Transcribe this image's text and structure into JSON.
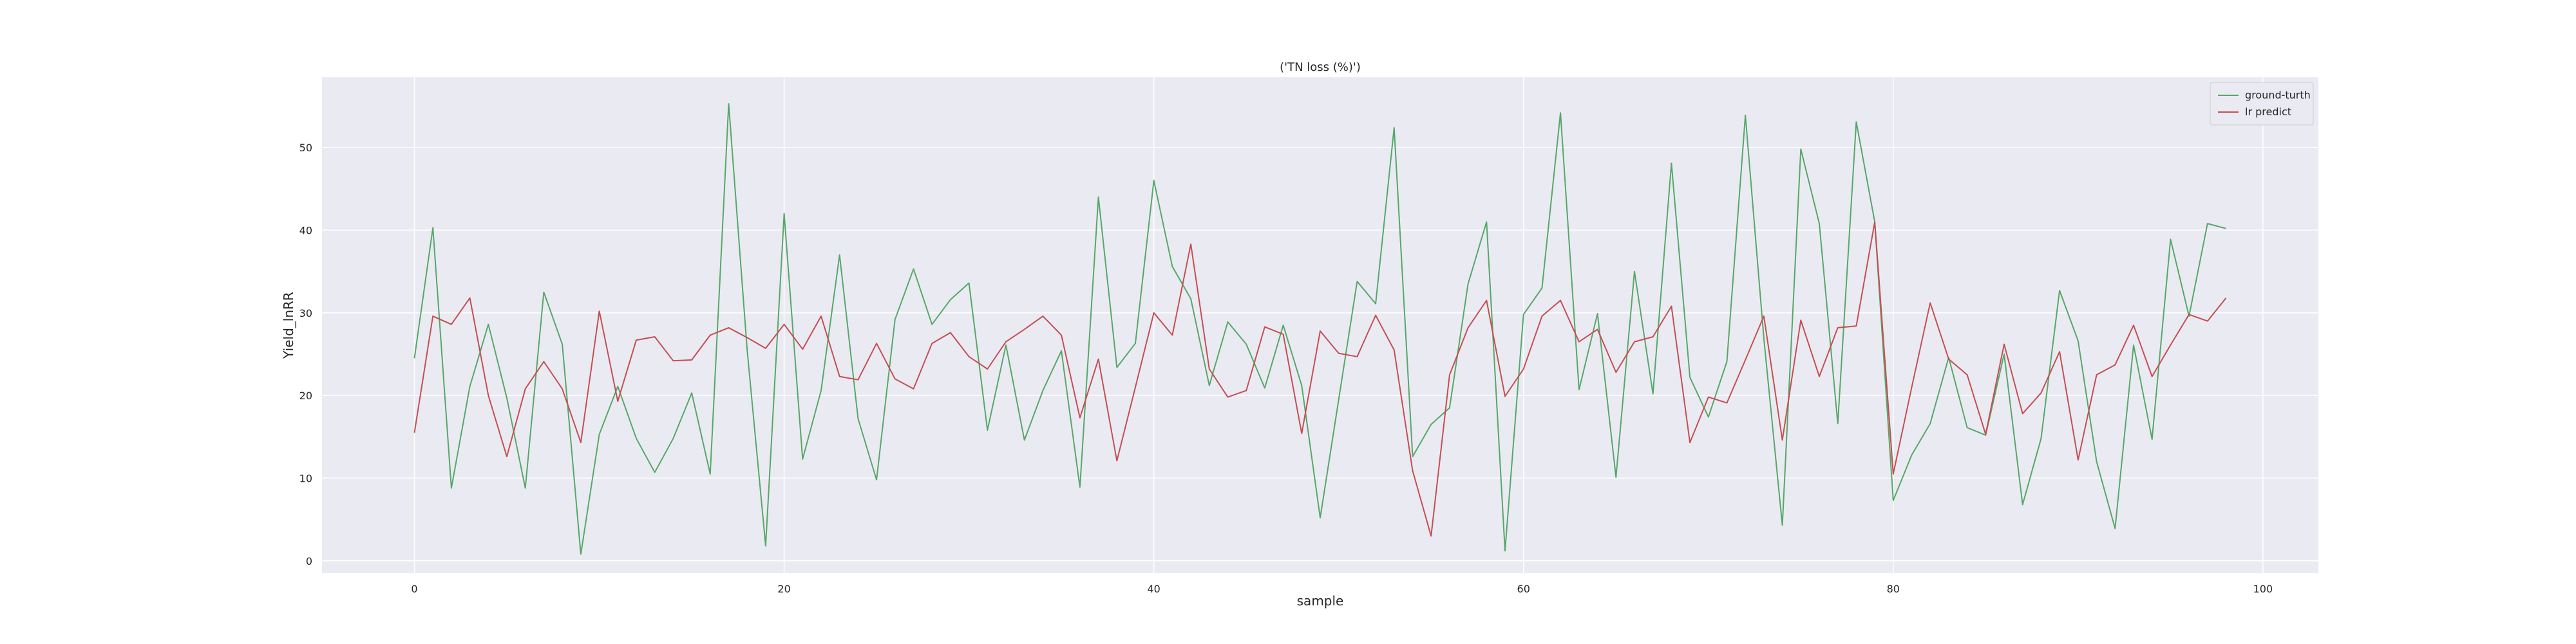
{
  "chart_data": {
    "type": "line",
    "title": "('TN loss (%)')",
    "xlabel": "sample",
    "ylabel": "Yield_lnRR",
    "xlim": [
      -5,
      103
    ],
    "ylim": [
      -1.5,
      58.5
    ],
    "xticks": [
      0,
      20,
      40,
      60,
      80,
      100
    ],
    "yticks": [
      0,
      10,
      20,
      30,
      40,
      50
    ],
    "grid": true,
    "legend": "top-right",
    "background": "#eaeaf2",
    "x": [
      0,
      1,
      2,
      3,
      4,
      5,
      6,
      7,
      8,
      9,
      10,
      11,
      12,
      13,
      14,
      15,
      16,
      17,
      18,
      19,
      20,
      21,
      22,
      23,
      24,
      25,
      26,
      27,
      28,
      29,
      30,
      31,
      32,
      33,
      34,
      35,
      36,
      37,
      38,
      39,
      40,
      41,
      42,
      43,
      44,
      45,
      46,
      47,
      48,
      49,
      50,
      51,
      52,
      53,
      54,
      55,
      56,
      57,
      58,
      59,
      60,
      61,
      62,
      63,
      64,
      65,
      66,
      67,
      68,
      69,
      70,
      71,
      72,
      73,
      74,
      75,
      76,
      77,
      78,
      79,
      80,
      81,
      82,
      83,
      84,
      85,
      86,
      87,
      88,
      89,
      90,
      91,
      92,
      93,
      94,
      95,
      96,
      97,
      98
    ],
    "series": [
      {
        "name": "ground-turth",
        "color": "#55a868",
        "values": [
          24.5,
          40.3,
          8.8,
          21.1,
          28.6,
          19.7,
          8.8,
          32.5,
          26.2,
          0.8,
          15.3,
          21.1,
          14.8,
          10.7,
          14.8,
          20.3,
          10.5,
          55.3,
          25.5,
          1.8,
          42.0,
          12.3,
          20.6,
          37.0,
          17.2,
          9.8,
          29.2,
          35.3,
          28.6,
          31.6,
          33.6,
          15.8,
          26.1,
          14.6,
          20.6,
          25.4,
          8.9,
          44.0,
          23.4,
          26.3,
          46.0,
          35.6,
          31.7,
          21.2,
          28.9,
          26.2,
          20.9,
          28.5,
          21.2,
          5.2,
          19.5,
          33.8,
          31.1,
          52.4,
          12.6,
          16.5,
          18.5,
          33.5,
          41.0,
          1.2,
          29.8,
          33.0,
          54.2,
          20.7,
          29.9,
          10.1,
          35.0,
          20.2,
          48.1,
          22.2,
          17.4,
          24.1,
          53.9,
          26.9,
          4.3,
          49.8,
          40.8,
          16.6,
          53.1,
          41.0,
          7.3,
          12.8,
          16.6,
          24.6,
          16.1,
          15.2,
          25.0,
          6.8,
          14.8,
          32.7,
          26.6,
          12.0,
          3.9,
          26.1,
          14.7,
          38.9,
          29.6,
          40.8,
          40.2
        ]
      },
      {
        "name": "lr predict",
        "color": "#c44e52",
        "values": [
          15.5,
          29.6,
          28.6,
          31.8,
          20.0,
          12.6,
          20.8,
          24.1,
          20.8,
          14.3,
          30.2,
          19.3,
          26.7,
          27.1,
          24.2,
          24.3,
          27.3,
          28.2,
          27.0,
          25.7,
          28.6,
          25.6,
          29.6,
          22.3,
          21.9,
          26.3,
          22.0,
          20.8,
          26.3,
          27.6,
          24.7,
          23.2,
          26.5,
          28.0,
          29.6,
          27.3,
          17.3,
          24.4,
          12.1,
          21.0,
          30.0,
          27.3,
          38.3,
          23.2,
          19.8,
          20.6,
          28.3,
          27.4,
          15.4,
          27.8,
          25.1,
          24.7,
          29.7,
          25.5,
          10.9,
          3.0,
          22.5,
          28.2,
          31.5,
          19.9,
          23.2,
          29.6,
          31.5,
          26.5,
          28.0,
          22.8,
          26.5,
          27.1,
          30.8,
          14.3,
          19.8,
          19.1,
          24.3,
          29.6,
          14.6,
          29.1,
          22.3,
          28.2,
          28.4,
          41.0,
          10.5,
          21.0,
          31.2,
          24.4,
          22.5,
          15.3,
          26.2,
          17.8,
          20.3,
          25.3,
          12.2,
          22.5,
          23.7,
          28.5,
          22.3,
          26.1,
          29.8,
          29.0,
          31.8
        ]
      }
    ]
  }
}
